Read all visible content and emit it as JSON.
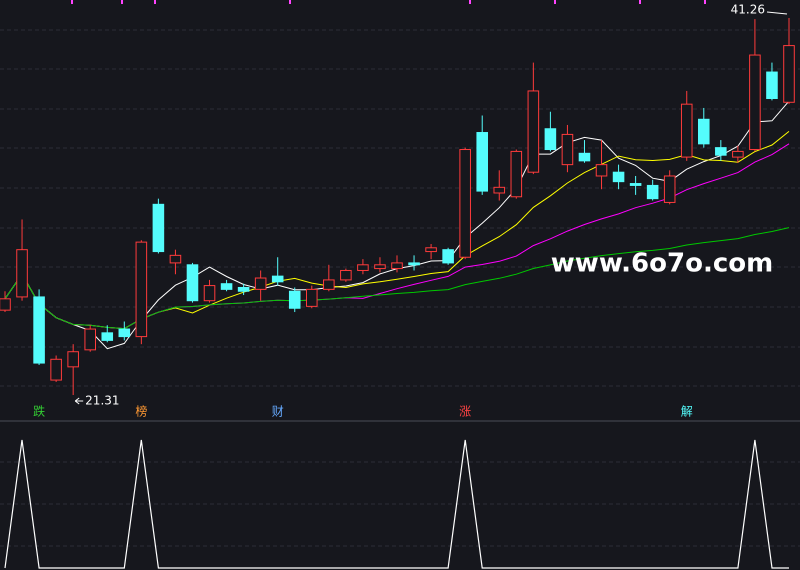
{
  "chart_data": {
    "type": "candlestick",
    "open": [
      25.8,
      26.5,
      26.5,
      22.1,
      22.8,
      23.7,
      24.6,
      24.8,
      24.4,
      31.4,
      28.3,
      28.2,
      26.3,
      27.2,
      27.0,
      26.9,
      27.6,
      26.8,
      26.0,
      26.9,
      27.4,
      27.9,
      28.0,
      28.0,
      28.3,
      28.9,
      29.0,
      28.6,
      35.2,
      32.0,
      31.8,
      33.1,
      35.4,
      33.5,
      34.1,
      32.9,
      33.1,
      32.5,
      32.4,
      31.5,
      33.9,
      35.9,
      34.4,
      33.9,
      34.3,
      38.4,
      36.8
    ],
    "high": [
      26.8,
      30.6,
      26.9,
      23.4,
      24.0,
      25.0,
      25.0,
      25.2,
      29.5,
      31.7,
      29.0,
      28.3,
      27.4,
      27.4,
      27.2,
      27.9,
      28.6,
      27.0,
      27.1,
      28.2,
      28.0,
      28.5,
      28.6,
      28.7,
      28.7,
      29.3,
      29.1,
      34.4,
      36.1,
      33.2,
      34.3,
      38.9,
      36.3,
      35.6,
      34.8,
      34.8,
      33.5,
      32.9,
      32.7,
      33.2,
      37.4,
      36.5,
      34.8,
      34.5,
      41.2,
      38.9,
      41.26
    ],
    "low": [
      25.7,
      26.3,
      22.9,
      22.0,
      21.31,
      23.6,
      24.1,
      24.2,
      24.0,
      28.8,
      27.7,
      26.2,
      26.2,
      26.8,
      26.6,
      26.3,
      27.1,
      25.7,
      25.9,
      26.8,
      27.3,
      27.7,
      27.8,
      27.8,
      27.9,
      28.5,
      28.2,
      28.5,
      31.9,
      31.6,
      31.7,
      33.0,
      34.2,
      33.1,
      33.6,
      32.2,
      32.2,
      31.9,
      31.6,
      31.4,
      33.7,
      34.4,
      33.7,
      33.6,
      34.2,
      36.9,
      36.7
    ],
    "close": [
      26.4,
      29.0,
      23.0,
      23.2,
      23.6,
      24.8,
      24.2,
      24.4,
      29.4,
      28.9,
      28.7,
      26.3,
      27.1,
      26.9,
      26.8,
      27.5,
      27.3,
      25.9,
      26.9,
      27.4,
      27.9,
      28.2,
      28.2,
      28.3,
      28.2,
      29.1,
      28.3,
      34.3,
      32.1,
      32.3,
      34.2,
      37.4,
      34.3,
      35.1,
      33.7,
      33.5,
      32.6,
      32.4,
      31.7,
      32.9,
      36.7,
      34.6,
      34.0,
      34.2,
      39.3,
      37.0,
      39.8
    ],
    "up_color": "#ff3b3b",
    "down_color": "#54fcfc",
    "moving_averages": [
      {
        "period": 5,
        "color": "#ffffff"
      },
      {
        "period": 10,
        "color": "#ffff00"
      },
      {
        "period": 20,
        "color": "#ff00ff"
      },
      {
        "period": 60,
        "color": "#00c800"
      }
    ],
    "signal": [
      0,
      1,
      0,
      0,
      0,
      0,
      0,
      0,
      1,
      0,
      0,
      0,
      0,
      0,
      0,
      0,
      0,
      0,
      0,
      0,
      0,
      0,
      0,
      0,
      0,
      0,
      0,
      1,
      0,
      0,
      0,
      0,
      0,
      0,
      0,
      0,
      0,
      0,
      0,
      0,
      0,
      0,
      0,
      0,
      1,
      0,
      0
    ],
    "signal_color": "#ffffff",
    "markers": [
      {
        "index": 2,
        "text": "跌",
        "color": "#33cc33"
      },
      {
        "index": 8,
        "text": "榜",
        "color": "#ff9933"
      },
      {
        "index": 16,
        "text": "财",
        "color": "#66aaff"
      },
      {
        "index": 27,
        "text": "涨",
        "color": "#ff4444"
      },
      {
        "index": 40,
        "text": "解",
        "color": "#54fcfc"
      }
    ],
    "watermark": "www.6o7o.com"
  }
}
